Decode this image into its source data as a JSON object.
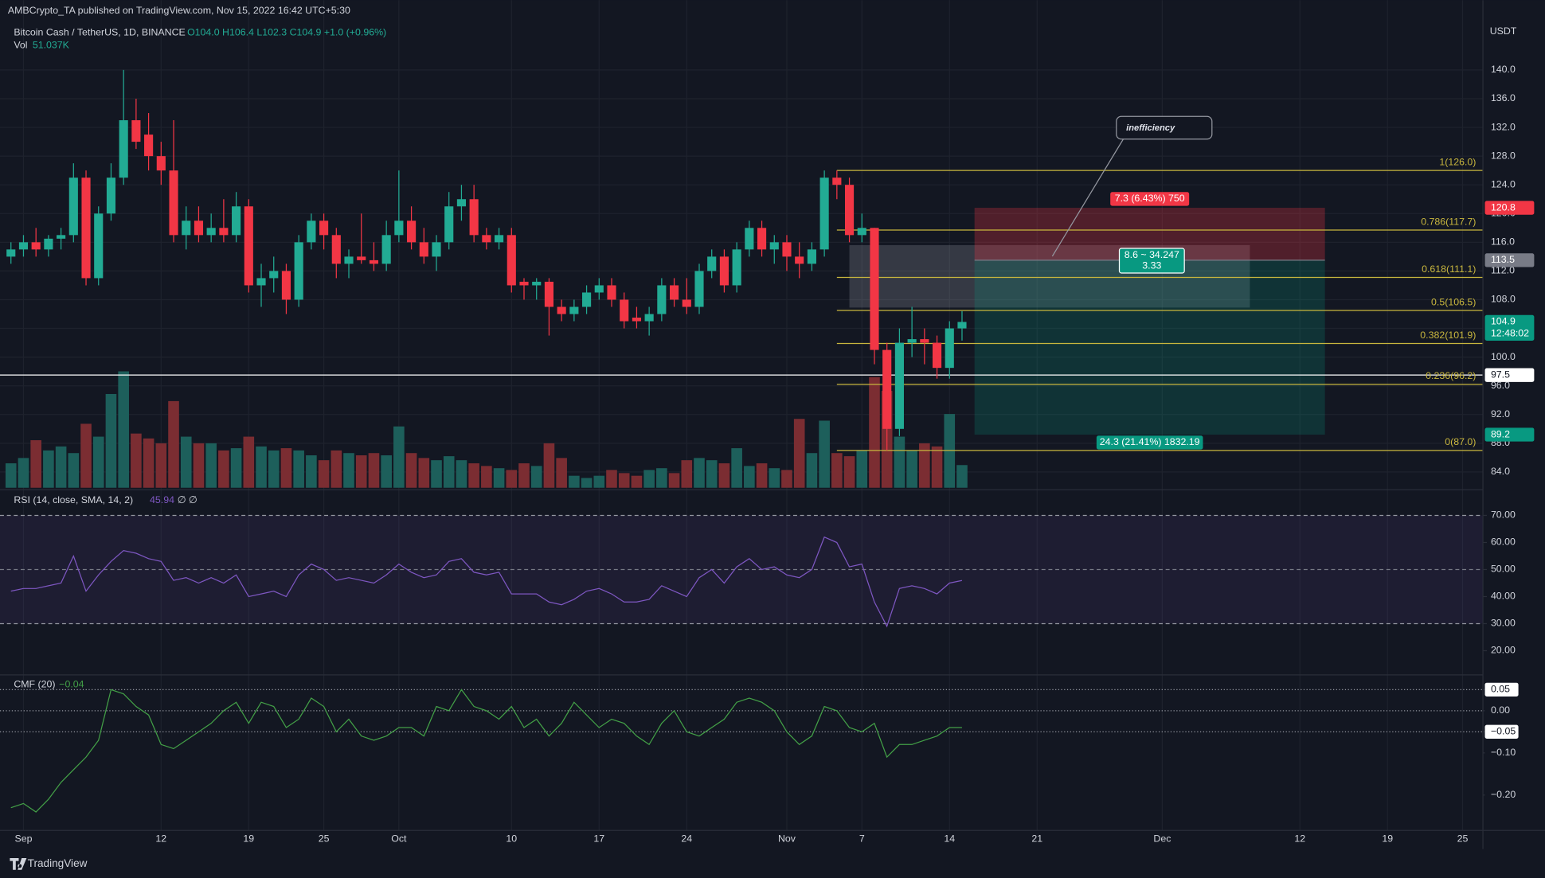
{
  "header": {
    "published": "AMBCrypto_TA published on TradingView.com, Nov 15, 2022 16:42 UTC+5:30",
    "brand": "TradingView"
  },
  "chart_data": [
    {
      "type": "candlestick",
      "title": "Bitcoin Cash / TetherUS, 1D, BINANCE",
      "ohlc_text": "O104.0 H106.4 L102.3 C104.9 +1.0 (+0.96%)",
      "currency": "USDT",
      "x": [
        "2022-08-31",
        "2022-09-01",
        "2022-09-02",
        "2022-09-03",
        "2022-09-04",
        "2022-09-05",
        "2022-09-06",
        "2022-09-07",
        "2022-09-08",
        "2022-09-09",
        "2022-09-10",
        "2022-09-11",
        "2022-09-12",
        "2022-09-13",
        "2022-09-14",
        "2022-09-15",
        "2022-09-16",
        "2022-09-17",
        "2022-09-18",
        "2022-09-19",
        "2022-09-20",
        "2022-09-21",
        "2022-09-22",
        "2022-09-23",
        "2022-09-24",
        "2022-09-25",
        "2022-09-26",
        "2022-09-27",
        "2022-09-28",
        "2022-09-29",
        "2022-09-30",
        "2022-10-01",
        "2022-10-02",
        "2022-10-03",
        "2022-10-04",
        "2022-10-05",
        "2022-10-06",
        "2022-10-07",
        "2022-10-08",
        "2022-10-09",
        "2022-10-10",
        "2022-10-11",
        "2022-10-12",
        "2022-10-13",
        "2022-10-14",
        "2022-10-15",
        "2022-10-16",
        "2022-10-17",
        "2022-10-18",
        "2022-10-19",
        "2022-10-20",
        "2022-10-21",
        "2022-10-22",
        "2022-10-23",
        "2022-10-24",
        "2022-10-25",
        "2022-10-26",
        "2022-10-27",
        "2022-10-28",
        "2022-10-29",
        "2022-10-30",
        "2022-10-31",
        "2022-11-01",
        "2022-11-02",
        "2022-11-03",
        "2022-11-04",
        "2022-11-05",
        "2022-11-06",
        "2022-11-07",
        "2022-11-08",
        "2022-11-09",
        "2022-11-10",
        "2022-11-11",
        "2022-11-12",
        "2022-11-13",
        "2022-11-14",
        "2022-11-15"
      ],
      "open": [
        114,
        115,
        116,
        115,
        116.5,
        117,
        125,
        111,
        120,
        125,
        133,
        131,
        128,
        126,
        117,
        119,
        117,
        118,
        117,
        121,
        110,
        111,
        112,
        108,
        116,
        119,
        117,
        113,
        114,
        113.5,
        113,
        117,
        119,
        116,
        114,
        116,
        121,
        122,
        117,
        116,
        117,
        110.5,
        110,
        110.5,
        107,
        106,
        107,
        109,
        110,
        108,
        105.5,
        105,
        106,
        110,
        108,
        107,
        112,
        114,
        110,
        115,
        118,
        115,
        116,
        114,
        113,
        115,
        125,
        124,
        117,
        118,
        101,
        90,
        102,
        102.5,
        102,
        98.5,
        104.0
      ],
      "high": [
        116,
        117,
        118,
        117,
        118,
        127,
        126,
        121,
        127,
        140,
        136,
        134,
        130,
        133,
        121,
        121,
        120,
        122,
        123,
        122,
        113,
        114,
        113,
        117,
        120,
        120,
        118,
        115,
        120,
        116,
        119,
        126,
        121,
        118,
        117,
        123,
        124,
        124,
        118,
        118,
        118,
        111,
        111,
        111,
        108,
        108,
        110,
        111,
        111,
        109,
        107,
        107,
        111,
        111,
        111,
        113,
        115,
        115,
        116,
        119,
        119,
        117,
        117,
        116,
        116,
        126,
        126,
        125,
        120,
        118,
        102,
        104,
        107,
        104,
        103,
        105,
        106.4
      ],
      "low": [
        113,
        114,
        114,
        114,
        115,
        116,
        110,
        110,
        119,
        124,
        129,
        126,
        124,
        116,
        115,
        116,
        116,
        116,
        116,
        109,
        107,
        109,
        106,
        107,
        115,
        115,
        111,
        111,
        113,
        112,
        112,
        116,
        115,
        113,
        112,
        115,
        119,
        116,
        115,
        115,
        109,
        108,
        108,
        103,
        105,
        105,
        106,
        108,
        107,
        104,
        104,
        103,
        105,
        107,
        106,
        106,
        111,
        109,
        109,
        114,
        114,
        113,
        112,
        111,
        112,
        114,
        122,
        116,
        116,
        99,
        87,
        89,
        100,
        99,
        97,
        97,
        102.3
      ],
      "close": [
        115,
        116,
        115,
        116.5,
        117,
        125,
        111,
        120,
        125,
        133,
        130,
        128,
        126,
        117,
        119,
        117,
        118,
        117,
        121,
        110,
        111,
        112,
        108,
        116,
        119,
        117,
        113,
        114,
        113.5,
        113,
        117,
        119,
        116,
        114,
        116,
        121,
        122,
        117,
        116,
        117,
        110,
        110,
        110.5,
        107,
        106,
        107,
        109,
        110,
        108,
        105,
        105,
        106,
        110,
        108,
        107,
        112,
        114,
        110,
        115,
        118,
        115,
        116,
        114,
        113,
        115,
        125,
        124,
        117,
        118,
        101,
        90,
        102,
        102.5,
        102,
        98.5,
        104,
        104.9
      ],
      "volume_name": "Vol",
      "volume_value_label": "51.037K",
      "volume": [
        55,
        67,
        107,
        84,
        93,
        78,
        144,
        115,
        211,
        262,
        122,
        111,
        100,
        195,
        115,
        100,
        100,
        84,
        89,
        115,
        93,
        84,
        89,
        84,
        73,
        62,
        84,
        78,
        73,
        78,
        73,
        138,
        78,
        67,
        62,
        71,
        62,
        55,
        49,
        44,
        40,
        55,
        49,
        100,
        67,
        27,
        22,
        27,
        40,
        33,
        27,
        40,
        44,
        33,
        62,
        67,
        62,
        55,
        89,
        49,
        55,
        44,
        40,
        155,
        78,
        151,
        78,
        71,
        84,
        249,
        218,
        115,
        84,
        100,
        93,
        166,
        51.037
      ],
      "vlim": [
        0,
        266
      ],
      "up_color": "#22ab94",
      "down_color": "#f23645",
      "volume_up_color": "#1d5f5b",
      "volume_down_color": "#7b2d32",
      "xlim": [
        "2022-08-30T03:00",
        "2022-12-26T15:00"
      ],
      "xticks": [
        {
          "value": "2022-09-01",
          "label": "Sep"
        },
        {
          "value": "2022-09-12",
          "label": "12"
        },
        {
          "value": "2022-09-19",
          "label": "19"
        },
        {
          "value": "2022-09-25",
          "label": "25"
        },
        {
          "value": "2022-10-01",
          "label": "Oct"
        },
        {
          "value": "2022-10-10",
          "label": "10"
        },
        {
          "value": "2022-10-17",
          "label": "17"
        },
        {
          "value": "2022-10-24",
          "label": "24"
        },
        {
          "value": "2022-11-01",
          "label": "Nov"
        },
        {
          "value": "2022-11-07",
          "label": "7"
        },
        {
          "value": "2022-11-14",
          "label": "14"
        },
        {
          "value": "2022-11-21",
          "label": "21"
        },
        {
          "value": "2022-12-01",
          "label": "Dec"
        },
        {
          "value": "2022-12-12",
          "label": "12"
        },
        {
          "value": "2022-12-19",
          "label": "19"
        },
        {
          "value": "2022-12-25",
          "label": "25"
        }
      ],
      "ylim": [
        81.8,
        145.6
      ],
      "yticks": [
        {
          "value": 84,
          "label": "84.0"
        },
        {
          "value": 88,
          "label": "88.0"
        },
        {
          "value": 92,
          "label": "92.0"
        },
        {
          "value": 96,
          "label": "96.0"
        },
        {
          "value": 100,
          "label": "100.0"
        },
        {
          "value": 104,
          "label": "104.0"
        },
        {
          "value": 108,
          "label": "108.0"
        },
        {
          "value": 112,
          "label": "112.0"
        },
        {
          "value": 116,
          "label": "116.0"
        },
        {
          "value": 120,
          "label": "120.0"
        },
        {
          "value": 124,
          "label": "124.0"
        },
        {
          "value": 128,
          "label": "128.0"
        },
        {
          "value": 132,
          "label": "132.0"
        },
        {
          "value": 136,
          "label": "136.0"
        },
        {
          "value": 140,
          "label": "140.0"
        }
      ],
      "grid": true,
      "countdown": "12:48:02",
      "hline": 97.5,
      "fib_color": "#c8b63e",
      "fib_start": "2022-11-05",
      "fib_levels": [
        {
          "value": 126.0,
          "label": "1(126.0)"
        },
        {
          "value": 117.7,
          "label": "0.786(117.7)"
        },
        {
          "value": 111.1,
          "label": "0.618(111.1)"
        },
        {
          "value": 106.5,
          "label": "0.5(106.5)"
        },
        {
          "value": 101.9,
          "label": "0.382(101.9)"
        },
        {
          "value": 96.2,
          "label": "0.236(96.2)"
        },
        {
          "value": 87.0,
          "label": "0(87.0)"
        }
      ],
      "position": {
        "start": "2022-11-16",
        "end": "2022-12-14",
        "stop": 120.8,
        "entry": 113.5,
        "target": 89.2,
        "stop_label": "7.3 (6.43%) 750",
        "target_label": "24.3 (21.41%) 1832.19",
        "ratio_label": "8.6 ~ 34.247",
        "rr_label": "3.33"
      },
      "inefficiency": {
        "label": "inefficiency",
        "start": "2022-11-06",
        "end": "2022-12-08",
        "top": 115.6,
        "bottom": 106.9
      }
    },
    {
      "type": "line",
      "title": "RSI (14, close, SMA, 14, 2)",
      "suffix": "∅ ∅",
      "color": "#7e57c2",
      "values": [
        42,
        43,
        43,
        44,
        45,
        55,
        42,
        48,
        53,
        57,
        56,
        54,
        53,
        46,
        47,
        45,
        47,
        45,
        48,
        40,
        41,
        42,
        40,
        48,
        52,
        50,
        46,
        47,
        46,
        45,
        48,
        52,
        49,
        47,
        48,
        53,
        54,
        49,
        48,
        49,
        41,
        41,
        41,
        38,
        37,
        39,
        42,
        43,
        41,
        38,
        38,
        39,
        44,
        42,
        40,
        47,
        50,
        45,
        51,
        54,
        50,
        51,
        48,
        47,
        50,
        62,
        60,
        51,
        52,
        38,
        29,
        43,
        44,
        43,
        41,
        45,
        45.94
      ],
      "ylim": [
        11.8,
        78.4
      ],
      "yticks": [
        {
          "value": 20,
          "label": "20.00"
        },
        {
          "value": 30,
          "label": "30.00"
        },
        {
          "value": 40,
          "label": "40.00"
        },
        {
          "value": 50,
          "label": "50.00"
        },
        {
          "value": 60,
          "label": "60.00"
        },
        {
          "value": 70,
          "label": "70.00"
        }
      ],
      "band": [
        30,
        70
      ],
      "middle": 50
    },
    {
      "type": "line",
      "title": "CMF (20)",
      "color": "#43a047",
      "last_value_label": "−0.04",
      "values": [
        -0.23,
        -0.22,
        -0.24,
        -0.21,
        -0.17,
        -0.14,
        -0.11,
        -0.07,
        0.05,
        0.04,
        0.01,
        -0.01,
        -0.08,
        -0.09,
        -0.07,
        -0.05,
        -0.03,
        0.0,
        0.02,
        -0.03,
        0.02,
        0.01,
        -0.04,
        -0.02,
        0.03,
        0.01,
        -0.05,
        -0.02,
        -0.06,
        -0.07,
        -0.06,
        -0.04,
        -0.04,
        -0.06,
        0.01,
        0.0,
        0.05,
        0.01,
        0.0,
        -0.02,
        0.01,
        -0.04,
        -0.02,
        -0.06,
        -0.03,
        0.02,
        -0.01,
        -0.04,
        -0.02,
        -0.03,
        -0.06,
        -0.08,
        -0.03,
        0.0,
        -0.05,
        -0.06,
        -0.04,
        -0.02,
        0.02,
        0.03,
        0.02,
        0.0,
        -0.05,
        -0.08,
        -0.06,
        0.01,
        0.0,
        -0.04,
        -0.05,
        -0.03,
        -0.11,
        -0.08,
        -0.08,
        -0.07,
        -0.06,
        -0.04,
        -0.04
      ],
      "ylim": [
        -0.277,
        0.078
      ],
      "yticks": [
        0.05,
        {
          "value": 0,
          "label": "0.00"
        },
        {
          "value": -0.05,
          "label": "−0.05"
        },
        {
          "value": -0.1,
          "label": "−0.10"
        },
        {
          "value": -0.2,
          "label": "−0.20"
        }
      ],
      "levels": [
        0.05,
        0,
        -0.05
      ]
    }
  ]
}
